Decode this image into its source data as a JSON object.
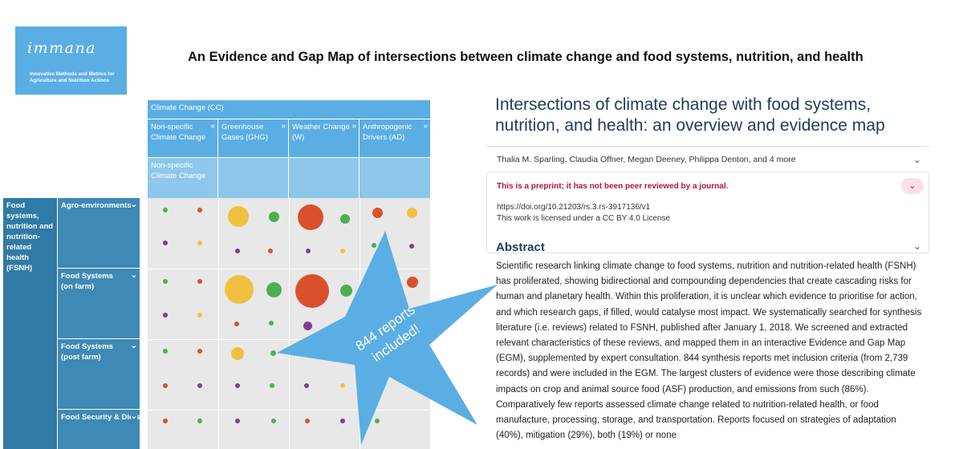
{
  "logo": {
    "brand": "immana",
    "tagline": "Innovative Methods and Metrics for Agriculture and Nutrition Actions"
  },
  "banner": {
    "title": "An Evidence and Gap Map of intersections between climate change and food systems, nutrition, and health"
  },
  "map": {
    "group_header": "Climate Change (CC)",
    "columns": [
      "Non-specific Climate Change",
      "Greenhouse Gases (GHG)",
      "Weather Change (W)",
      "Anthropogenic Drivers (AD)"
    ],
    "sub_columns": [
      "Non-specific Climate Change",
      "",
      "",
      ""
    ],
    "row_group": "Food systems, nutrition and nutrition-related health (FSNH)",
    "rows": [
      "Agro-environments",
      "Food Systems (on farm)",
      "Food Systems (post farm)",
      "Food Security & Diets"
    ],
    "colors": {
      "green": "#4caf50",
      "red": "#d9512c",
      "yellow": "#f0c040",
      "purple": "#7e3d8f"
    }
  },
  "callout": {
    "text_line1": "844 reports",
    "text_line2": "included!",
    "color": "#5aaee3"
  },
  "paper": {
    "title": "Intersections of climate change with food systems, nutrition, and health: an overview and evidence map",
    "authors": "Thalia M. Sparling, Claudia Offner, Megan Deeney, Philippa Denton, and 4 more",
    "preprint_notice": "This is a preprint; it has not been peer reviewed by a journal.",
    "doi": "https://doi.org/10.21203/rs.3.rs-3917136/v1",
    "license": "This work is licensed under a CC BY 4.0 License",
    "abstract_heading": "Abstract",
    "abstract_text": "Scientific research linking climate change to food systems, nutrition and nutrition-related health (FSNH) has proliferated, showing bidirectional and compounding dependencies that create cascading risks for human and planetary health. Within this proliferation, it is unclear which evidence to prioritise for action, and which research gaps, if filled, would catalyse most impact. We systematically searched for synthesis literature (i.e. reviews) related to FSNH, published after January 1, 2018. We screened and extracted relevant characteristics of these reviews, and mapped them in an interactive Evidence and Gap Map (EGM), supplemented by expert consultation. 844 synthesis reports met inclusion criteria (from 2,739 records) and were included in the EGM. The largest clusters of evidence were those describing climate impacts on crop and animal source food (ASF) production, and emissions from such (86%). Comparatively few reports assessed climate change related to nutrition-related health, or food manufacture, processing, storage, and transportation. Reports focused on strategies of adaptation (40%), mitigation (29%), both (19%) or none"
  }
}
